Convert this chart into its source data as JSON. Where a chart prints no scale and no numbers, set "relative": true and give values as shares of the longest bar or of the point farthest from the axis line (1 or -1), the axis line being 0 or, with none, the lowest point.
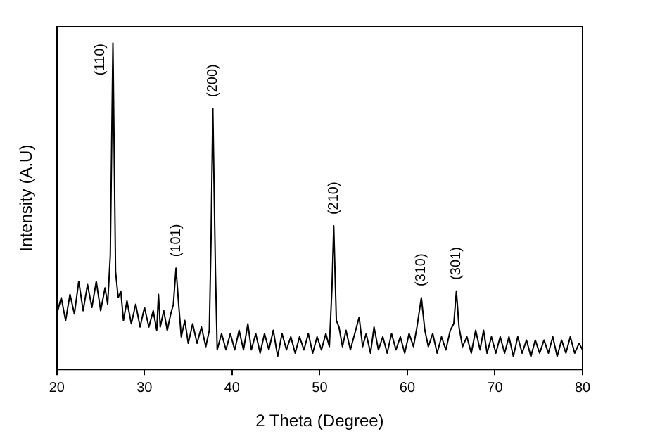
{
  "chart_data": {
    "type": "line",
    "relative": true,
    "xlabel": "2 Theta (Degree)",
    "ylabel": "Intensity (A.U)",
    "xlim": [
      20,
      80
    ],
    "xticks": [
      20,
      30,
      40,
      50,
      60,
      70,
      80
    ],
    "grid": false,
    "legend": false,
    "marker": "none",
    "line_style": "solid",
    "series": [
      {
        "color": "#000000",
        "x": [
          20,
          20.5,
          21,
          21.5,
          22,
          22.5,
          23,
          23.5,
          24,
          24.5,
          25,
          25.5,
          25.8,
          26.1,
          26.4,
          26.7,
          27,
          27.3,
          27.6,
          28,
          28.5,
          29,
          29.5,
          30,
          30.5,
          31,
          31.4,
          31.6,
          31.8,
          32.2,
          32.6,
          33,
          33.3,
          33.6,
          33.9,
          34.2,
          34.6,
          35,
          35.5,
          36,
          36.5,
          37,
          37.4,
          37.6,
          37.8,
          38.1,
          38.3,
          38.8,
          39.3,
          39.8,
          40.3,
          40.8,
          41.3,
          41.8,
          42.2,
          42.7,
          43.2,
          43.7,
          44.2,
          44.7,
          45.2,
          45.7,
          46.2,
          46.7,
          47.2,
          47.7,
          48.2,
          48.7,
          49.2,
          49.7,
          50.2,
          50.7,
          51.1,
          51.4,
          51.6,
          51.9,
          52.2,
          52.6,
          53,
          53.5,
          54,
          54.5,
          54.9,
          55.3,
          55.8,
          56.2,
          56.7,
          57.2,
          57.7,
          58.2,
          58.7,
          59.2,
          59.7,
          60.2,
          60.7,
          61.1,
          61.6,
          62,
          62.4,
          62.9,
          63.4,
          63.9,
          64.4,
          64.9,
          65.3,
          65.6,
          65.9,
          66.3,
          66.8,
          67.3,
          67.8,
          68.3,
          68.7,
          69.1,
          69.6,
          70.1,
          70.6,
          71.1,
          71.6,
          72.1,
          72.6,
          73.1,
          73.6,
          74.1,
          74.6,
          75.1,
          75.6,
          76.1,
          76.6,
          77.1,
          77.6,
          78.1,
          78.6,
          79.1,
          79.6,
          80
        ],
        "values": [
          0.17,
          0.22,
          0.15,
          0.23,
          0.17,
          0.27,
          0.18,
          0.26,
          0.19,
          0.27,
          0.18,
          0.25,
          0.2,
          0.35,
          1.0,
          0.3,
          0.22,
          0.24,
          0.15,
          0.21,
          0.14,
          0.2,
          0.13,
          0.19,
          0.13,
          0.18,
          0.12,
          0.23,
          0.13,
          0.18,
          0.12,
          0.17,
          0.2,
          0.31,
          0.2,
          0.1,
          0.15,
          0.08,
          0.14,
          0.08,
          0.13,
          0.07,
          0.12,
          0.4,
          0.8,
          0.3,
          0.06,
          0.11,
          0.06,
          0.11,
          0.06,
          0.12,
          0.06,
          0.14,
          0.06,
          0.11,
          0.05,
          0.11,
          0.06,
          0.12,
          0.04,
          0.11,
          0.06,
          0.1,
          0.05,
          0.1,
          0.06,
          0.11,
          0.05,
          0.1,
          0.06,
          0.11,
          0.07,
          0.25,
          0.44,
          0.15,
          0.13,
          0.07,
          0.12,
          0.06,
          0.11,
          0.16,
          0.07,
          0.11,
          0.05,
          0.13,
          0.06,
          0.1,
          0.05,
          0.11,
          0.06,
          0.1,
          0.05,
          0.11,
          0.07,
          0.13,
          0.22,
          0.12,
          0.07,
          0.11,
          0.05,
          0.1,
          0.06,
          0.12,
          0.14,
          0.24,
          0.13,
          0.07,
          0.1,
          0.05,
          0.12,
          0.06,
          0.12,
          0.05,
          0.1,
          0.05,
          0.1,
          0.05,
          0.1,
          0.04,
          0.1,
          0.05,
          0.09,
          0.04,
          0.09,
          0.05,
          0.09,
          0.05,
          0.1,
          0.04,
          0.09,
          0.05,
          0.1,
          0.05,
          0.08,
          0.06
        ]
      }
    ],
    "annotations": [
      {
        "text": "(110)",
        "x": 26.4,
        "y": 1.0
      },
      {
        "text": "(101)",
        "x": 33.6,
        "y": 0.31
      },
      {
        "text": "(200)",
        "x": 37.8,
        "y": 0.8
      },
      {
        "text": "(210)",
        "x": 51.6,
        "y": 0.44
      },
      {
        "text": "(310)",
        "x": 61.6,
        "y": 0.22
      },
      {
        "text": "(301)",
        "x": 65.6,
        "y": 0.24
      }
    ]
  }
}
